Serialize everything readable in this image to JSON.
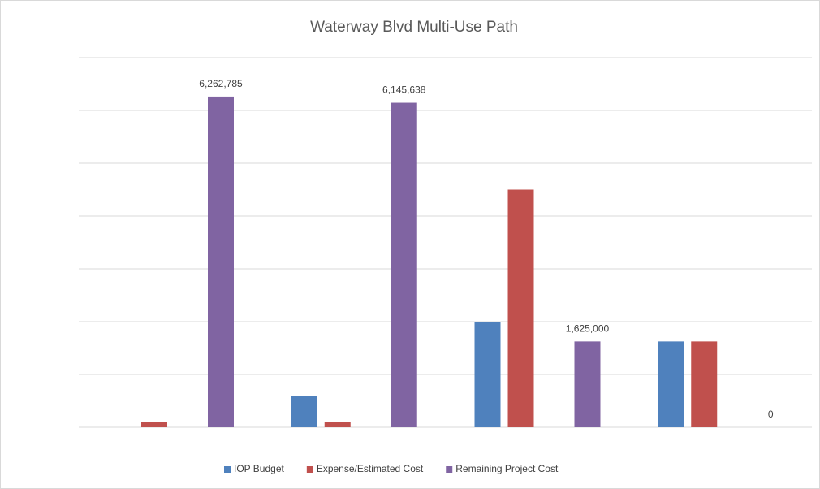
{
  "chart_data": {
    "type": "bar",
    "title": "Waterway Blvd Multi-Use Path",
    "categories": [
      null,
      null,
      null,
      null
    ],
    "series": [
      {
        "name": "IOP Budget",
        "color": "#4f81bd",
        "values": [
          null,
          600000,
          2000000,
          1625000
        ]
      },
      {
        "name": "Expense/Estimated Cost",
        "color": "#c0504d",
        "values": [
          100000,
          100000,
          4500000,
          1625000
        ]
      },
      {
        "name": "Remaining Project Cost",
        "color": "#8064a2",
        "values": [
          6262785,
          6145638,
          1625000,
          0
        ],
        "value_labels": [
          "6,262,785",
          "6,145,638",
          "1,625,000",
          "0"
        ]
      }
    ],
    "ylim": [
      0,
      7000000
    ],
    "yticks": [
      0,
      1000000,
      2000000,
      3000000,
      4000000,
      5000000,
      6000000,
      7000000
    ],
    "show_tick_labels": false,
    "grid": true,
    "legend": "bottom"
  }
}
